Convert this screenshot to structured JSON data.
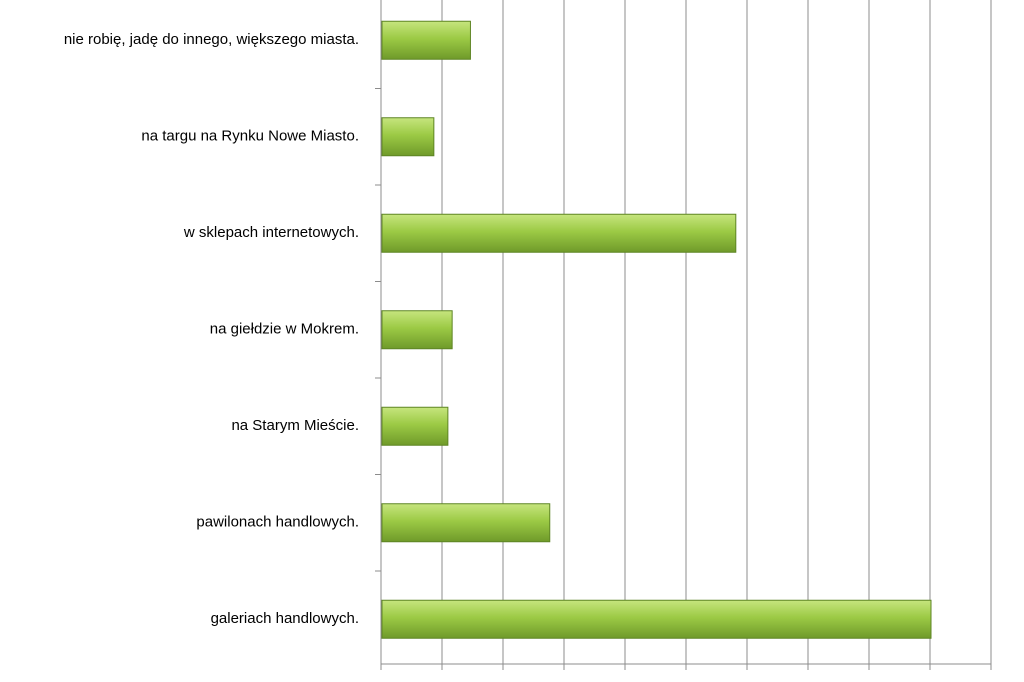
{
  "chart_data": {
    "type": "bar",
    "orientation": "horizontal",
    "categories": [
      "nie robię, jadę do innego, większego miasta.",
      "na targu na Rynku Nowe Miasto.",
      "w sklepach internetowych.",
      "na giełdzie w Mokrem.",
      "na Starym Mieście.",
      "pawilonach handlowych.",
      "galeriach handlowych."
    ],
    "values": [
      1.45,
      0.85,
      5.8,
      1.15,
      1.08,
      2.75,
      9.0
    ],
    "xlim": [
      0,
      10
    ],
    "xtick_step": 1,
    "grid": true,
    "legend": "none",
    "bar_color": "#8cbf3f"
  }
}
